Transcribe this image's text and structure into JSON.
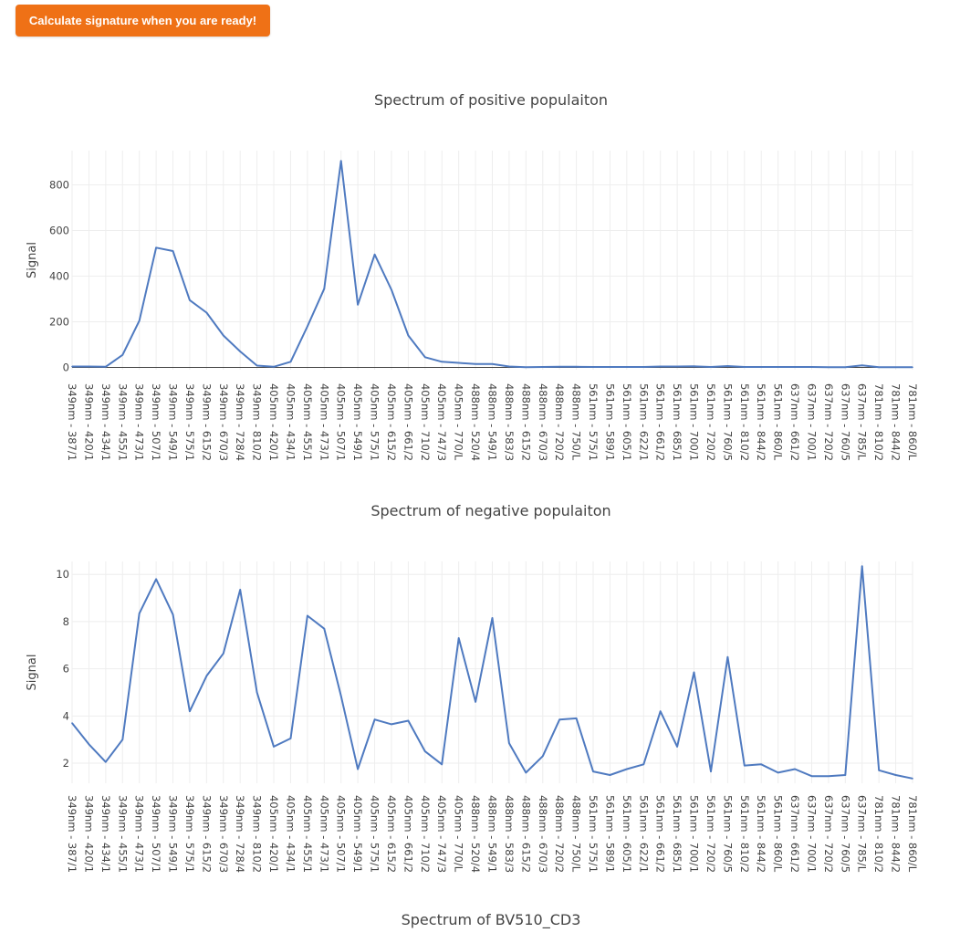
{
  "action_button": {
    "label": "Calculate signature when you are ready!"
  },
  "colors": {
    "button": "#ef7116",
    "line": "#4f7ac0",
    "grid": "#eeeeee",
    "zeroline": "#444444",
    "text": "#444444"
  },
  "chart_data": [
    {
      "type": "line",
      "title": "Spectrum of positive populaiton",
      "xlabel": "",
      "ylabel": "Signal",
      "ylim": [
        -10,
        950
      ],
      "yticks": [
        0,
        200,
        400,
        600,
        800
      ],
      "show_zeroline": true,
      "categories": [
        "349nm - 387/1",
        "349nm - 420/1",
        "349nm - 434/1",
        "349nm - 455/1",
        "349nm - 473/1",
        "349nm - 507/1",
        "349nm - 549/1",
        "349nm - 575/1",
        "349nm - 615/2",
        "349nm - 670/3",
        "349nm - 728/4",
        "349nm - 810/2",
        "405nm - 420/1",
        "405nm - 434/1",
        "405nm - 455/1",
        "405nm - 473/1",
        "405nm - 507/1",
        "405nm - 549/1",
        "405nm - 575/1",
        "405nm - 615/2",
        "405nm - 661/2",
        "405nm - 710/2",
        "405nm - 747/3",
        "405nm - 770/L",
        "488nm - 520/4",
        "488nm - 549/1",
        "488nm - 583/3",
        "488nm - 615/2",
        "488nm - 670/3",
        "488nm - 720/2",
        "488nm - 750/L",
        "561nm - 575/1",
        "561nm - 589/1",
        "561nm - 605/1",
        "561nm - 622/1",
        "561nm - 661/2",
        "561nm - 685/1",
        "561nm - 700/1",
        "561nm - 720/2",
        "561nm - 760/5",
        "561nm - 810/2",
        "561nm - 844/2",
        "561nm - 860/L",
        "637nm - 661/2",
        "637nm - 700/1",
        "637nm - 720/2",
        "637nm - 760/5",
        "637nm - 785/L",
        "781nm - 810/2",
        "781nm - 844/2",
        "781nm - 860/L"
      ],
      "series": [
        {
          "values": [
            4,
            4,
            3,
            55,
            205,
            525,
            510,
            295,
            240,
            140,
            70,
            8,
            3,
            25,
            180,
            345,
            905,
            275,
            495,
            340,
            140,
            45,
            25,
            20,
            15,
            15,
            4,
            1,
            2,
            3,
            3,
            2,
            2,
            2,
            2,
            4,
            4,
            5,
            2,
            6,
            2,
            2,
            2,
            2,
            2,
            1,
            1,
            9,
            1,
            1,
            1
          ]
        }
      ]
    },
    {
      "type": "line",
      "title": "Spectrum of negative populaiton",
      "xlabel": "",
      "ylabel": "Signal",
      "ylim": [
        1.15,
        10.55
      ],
      "yticks": [
        2,
        4,
        6,
        8,
        10
      ],
      "show_zeroline": false,
      "categories": [
        "349nm - 387/1",
        "349nm - 420/1",
        "349nm - 434/1",
        "349nm - 455/1",
        "349nm - 473/1",
        "349nm - 507/1",
        "349nm - 549/1",
        "349nm - 575/1",
        "349nm - 615/2",
        "349nm - 670/3",
        "349nm - 728/4",
        "349nm - 810/2",
        "405nm - 420/1",
        "405nm - 434/1",
        "405nm - 455/1",
        "405nm - 473/1",
        "405nm - 507/1",
        "405nm - 549/1",
        "405nm - 575/1",
        "405nm - 615/2",
        "405nm - 661/2",
        "405nm - 710/2",
        "405nm - 747/3",
        "405nm - 770/L",
        "488nm - 520/4",
        "488nm - 549/1",
        "488nm - 583/3",
        "488nm - 615/2",
        "488nm - 670/3",
        "488nm - 720/2",
        "488nm - 750/L",
        "561nm - 575/1",
        "561nm - 589/1",
        "561nm - 605/1",
        "561nm - 622/1",
        "561nm - 661/2",
        "561nm - 685/1",
        "561nm - 700/1",
        "561nm - 720/2",
        "561nm - 760/5",
        "561nm - 810/2",
        "561nm - 844/2",
        "561nm - 860/L",
        "637nm - 661/2",
        "637nm - 700/1",
        "637nm - 720/2",
        "637nm - 760/5",
        "637nm - 785/L",
        "781nm - 810/2",
        "781nm - 844/2",
        "781nm - 860/L"
      ],
      "series": [
        {
          "values": [
            3.7,
            2.8,
            2.05,
            3.0,
            8.35,
            9.8,
            8.3,
            4.2,
            5.7,
            6.65,
            9.35,
            5.0,
            2.7,
            3.05,
            8.25,
            7.7,
            4.85,
            1.75,
            3.85,
            3.65,
            3.8,
            2.5,
            1.95,
            7.3,
            4.6,
            8.15,
            2.85,
            1.6,
            2.3,
            3.85,
            3.9,
            1.65,
            1.5,
            1.75,
            1.95,
            4.2,
            2.7,
            5.85,
            1.65,
            6.5,
            1.9,
            1.95,
            1.6,
            1.75,
            1.45,
            1.45,
            1.5,
            10.35,
            1.7,
            1.5,
            1.35
          ]
        }
      ]
    }
  ],
  "third_chart": {
    "title": "Spectrum of BV510_CD3"
  }
}
